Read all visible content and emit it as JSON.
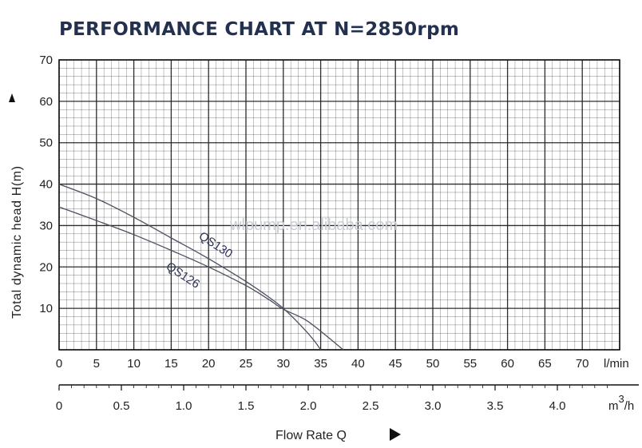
{
  "chart_data": {
    "type": "line",
    "title": "PERFORMANCE CHART AT N=2850rpm",
    "ylabel": "Total dynamic head H(m)",
    "xlabel": "Flow Rate Q",
    "ylim": [
      0,
      70
    ],
    "xlim": [
      0,
      75
    ],
    "y_ticks": [
      "10",
      "20",
      "30",
      "40",
      "50",
      "60",
      "70"
    ],
    "x_ticks_lmin": [
      "0",
      "5",
      "10",
      "15",
      "20",
      "25",
      "30",
      "35",
      "40",
      "45",
      "50",
      "55",
      "60",
      "65",
      "70"
    ],
    "x_unit_lmin": "l/min",
    "x_ticks_m3h": [
      "0",
      "0.5",
      "1.0",
      "1.5",
      "2.0",
      "2.5",
      "3.0",
      "3.5",
      "4.0"
    ],
    "x_unit_m3h": "m",
    "x_unit_m3h_exp": "3",
    "x_unit_m3h_suffix": "/h",
    "grid": true,
    "series": [
      {
        "name": "QS130",
        "x": [
          0,
          5,
          10,
          15,
          20,
          25,
          28,
          30,
          33,
          36,
          38
        ],
        "y": [
          34.5,
          31.2,
          27.8,
          24,
          20,
          15.5,
          12.2,
          9.8,
          7.2,
          3,
          0
        ]
      },
      {
        "name": "QS126",
        "x": [
          0,
          5,
          10,
          15,
          20,
          25,
          28,
          30,
          32,
          34,
          35
        ],
        "y": [
          40,
          36.5,
          32,
          27,
          22,
          16.5,
          12.8,
          10,
          6.5,
          2.5,
          0
        ]
      }
    ],
    "annotations": [
      "QS130",
      "QS126"
    ],
    "watermark": "wlpump.en.alibaba.com",
    "colors": {
      "curve": "#4a5060",
      "grid": "#222222",
      "title": "#23304f"
    }
  }
}
